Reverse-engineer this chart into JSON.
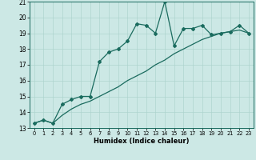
{
  "title": "",
  "xlabel": "Humidex (Indice chaleur)",
  "x_values": [
    0,
    1,
    2,
    3,
    4,
    5,
    6,
    7,
    8,
    9,
    10,
    11,
    12,
    13,
    14,
    15,
    16,
    17,
    18,
    19,
    20,
    21,
    22,
    23
  ],
  "line1_y": [
    13.3,
    13.5,
    13.3,
    14.5,
    14.8,
    15.0,
    15.0,
    17.2,
    17.8,
    18.0,
    18.5,
    19.6,
    19.5,
    19.0,
    21.0,
    18.2,
    19.3,
    19.3,
    19.5,
    18.9,
    19.0,
    19.1,
    19.5,
    19.0
  ],
  "line2_y": [
    13.3,
    13.5,
    13.3,
    13.8,
    14.2,
    14.5,
    14.7,
    15.0,
    15.3,
    15.6,
    16.0,
    16.3,
    16.6,
    17.0,
    17.3,
    17.7,
    18.0,
    18.3,
    18.6,
    18.8,
    19.0,
    19.1,
    19.2,
    19.0
  ],
  "ylim": [
    13,
    21
  ],
  "yticks": [
    13,
    14,
    15,
    16,
    17,
    18,
    19,
    20,
    21
  ],
  "xlim": [
    -0.5,
    23.5
  ],
  "bg_color": "#cce8e5",
  "line_color": "#1a6b5e",
  "grid_color": "#aed4cf"
}
